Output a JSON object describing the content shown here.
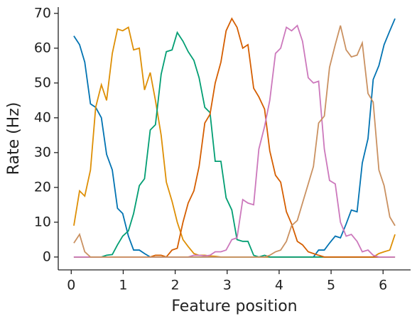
{
  "chart_data": {
    "type": "line",
    "xlabel": "Feature position",
    "ylabel": "Rate (Hz)",
    "x": [
      0.05,
      0.16,
      0.26,
      0.37,
      0.47,
      0.58,
      0.68,
      0.79,
      0.89,
      0.99,
      1.1,
      1.2,
      1.31,
      1.41,
      1.52,
      1.62,
      1.73,
      1.83,
      1.94,
      2.04,
      2.15,
      2.25,
      2.36,
      2.46,
      2.57,
      2.67,
      2.77,
      2.88,
      2.98,
      3.09,
      3.19,
      3.3,
      3.4,
      3.51,
      3.61,
      3.72,
      3.82,
      3.93,
      4.03,
      4.14,
      4.24,
      4.35,
      4.45,
      4.56,
      4.66,
      4.76,
      4.87,
      4.97,
      5.08,
      5.18,
      5.29,
      5.39,
      5.5,
      5.6,
      5.71,
      5.81,
      5.92,
      6.02,
      6.13,
      6.23
    ],
    "series": [
      {
        "color": "#0173b2",
        "values": [
          63.5,
          61,
          56,
          44,
          43,
          40,
          29.5,
          25,
          14,
          12.5,
          6,
          2,
          2,
          1,
          0,
          0,
          0,
          0,
          0,
          0,
          0,
          0,
          0,
          0,
          0,
          0,
          0,
          0,
          0,
          0,
          0,
          0,
          0,
          0,
          0,
          0,
          0,
          0,
          0,
          0,
          0,
          0,
          0,
          0,
          0,
          2,
          2,
          4,
          6,
          5.5,
          9.5,
          13.5,
          13,
          27,
          34,
          51,
          55,
          61,
          65,
          68.5
        ]
      },
      {
        "color": "#de8f05",
        "values": [
          9,
          19,
          17.5,
          25,
          43,
          49.5,
          45,
          58.5,
          65.5,
          65,
          66,
          59.5,
          60,
          48,
          53,
          45,
          35,
          21.5,
          16,
          10,
          5,
          3,
          1,
          0.5,
          0.5,
          0.3,
          0.2,
          0,
          0,
          0,
          0,
          0,
          0,
          0,
          0,
          0,
          0,
          0,
          0,
          0,
          0,
          0,
          0,
          0,
          0,
          0,
          0,
          0,
          0,
          0,
          0,
          0,
          0,
          0,
          0,
          0,
          1,
          1.5,
          2,
          6.5
        ]
      },
      {
        "color": "#029e73",
        "values": [
          0,
          0,
          0,
          0,
          0,
          0,
          0.5,
          0.7,
          3.5,
          6,
          7.5,
          12.5,
          20.5,
          22.5,
          36.5,
          38,
          52.5,
          59,
          59.5,
          64.5,
          62,
          59,
          56.5,
          51.5,
          43,
          41.5,
          27.5,
          27.5,
          17,
          13.5,
          5,
          4.5,
          4.5,
          0.5,
          0,
          0.5,
          0,
          0,
          0,
          0,
          0,
          0,
          0,
          0,
          0,
          0,
          0,
          0,
          0,
          0,
          0,
          0,
          0,
          0,
          0,
          0,
          0,
          0,
          0,
          0
        ]
      },
      {
        "color": "#d55e00",
        "values": [
          0,
          0,
          0,
          0,
          0,
          0,
          0,
          0,
          0,
          0,
          0,
          0,
          0,
          0,
          0,
          0.5,
          0.5,
          0,
          2,
          2.5,
          10,
          15.5,
          19,
          26,
          38.5,
          41,
          50,
          56,
          65,
          68.5,
          66,
          60,
          61,
          48.5,
          46,
          42.5,
          30.5,
          23.5,
          21.5,
          13,
          9.5,
          4.5,
          3.5,
          1.5,
          1,
          0.5,
          0,
          0,
          0,
          0,
          0,
          0,
          0,
          0,
          0,
          0,
          0,
          0,
          0,
          0
        ]
      },
      {
        "color": "#cc78bc",
        "values": [
          0,
          0,
          0,
          0,
          0,
          0,
          0,
          0,
          0,
          0,
          0,
          0,
          0,
          0,
          0,
          0,
          0,
          0,
          0,
          0,
          0,
          0,
          0.5,
          0.5,
          0.3,
          0.5,
          1.5,
          1.5,
          2,
          5,
          5.5,
          16.5,
          15.5,
          15,
          31,
          37.5,
          45,
          58.5,
          60,
          66,
          65,
          66.5,
          62,
          51.5,
          50,
          50.5,
          31,
          22,
          21,
          10,
          6,
          6.5,
          4.5,
          1.5,
          2,
          0.5,
          0,
          0,
          0,
          0
        ]
      },
      {
        "color": "#ca9161",
        "values": [
          4,
          6.5,
          1.5,
          0,
          0,
          0,
          0,
          0,
          0,
          0,
          0,
          0,
          0,
          0,
          0,
          0,
          0,
          0,
          0,
          0,
          0,
          0,
          0,
          0,
          0,
          0,
          0,
          0,
          0,
          0,
          0,
          0,
          0,
          0,
          0,
          0,
          0.5,
          1.5,
          2,
          4.5,
          9,
          10.5,
          15.5,
          21,
          26,
          38.5,
          40.5,
          54.5,
          61,
          66.5,
          59.5,
          57.5,
          58,
          61.5,
          47,
          44.5,
          25,
          20.5,
          11.5,
          9
        ]
      }
    ],
    "xlim": [
      -0.25,
      6.53
    ],
    "ylim": [
      -3.7,
      71.8
    ],
    "xticks": [
      0,
      1,
      2,
      3,
      4,
      5,
      6
    ],
    "yticks": [
      0,
      10,
      20,
      30,
      40,
      50,
      60,
      70
    ]
  }
}
